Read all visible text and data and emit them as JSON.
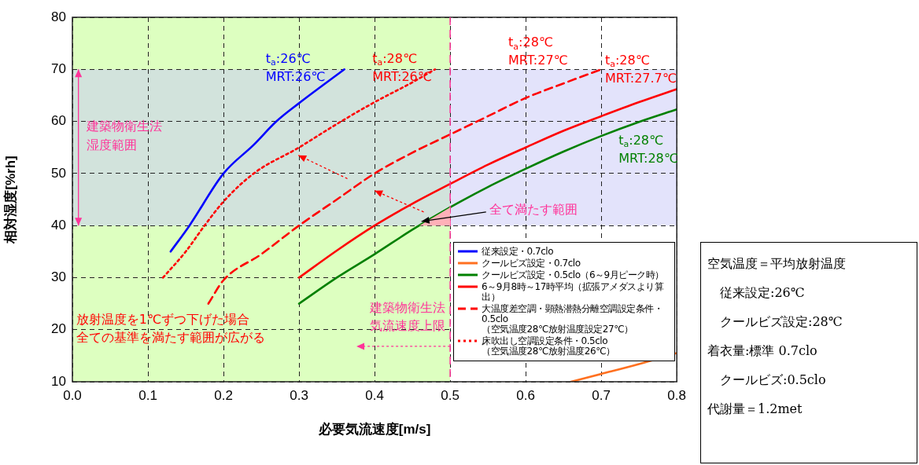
{
  "chart_data": {
    "type": "line",
    "xlabel": "必要気流速度[m/s]",
    "ylabel": "相対湿度[%rh]",
    "xlim": [
      0,
      0.8
    ],
    "xticks": [
      {
        "value": 0,
        "label": "0.0"
      },
      {
        "value": 0.1,
        "label": "0.1"
      },
      {
        "value": 0.2,
        "label": "0.2"
      },
      {
        "value": 0.3,
        "label": "0.3"
      },
      {
        "value": 0.4,
        "label": "0.4"
      },
      {
        "value": 0.5,
        "label": "0.5"
      },
      {
        "value": 0.6,
        "label": "0.6"
      },
      {
        "value": 0.7,
        "label": "0.7"
      },
      {
        "value": 0.8,
        "label": "0.8"
      }
    ],
    "ylim": [
      10,
      80
    ],
    "yticks": [
      10,
      20,
      30,
      40,
      50,
      60,
      70,
      80
    ],
    "grid": true,
    "legend": "bottom right",
    "series": [
      {
        "name": "従来設定・0.7clo",
        "color": "#0000ff",
        "line_style": "solid",
        "x": [
          0.13,
          0.155,
          0.2,
          0.24,
          0.27,
          0.3,
          0.36
        ],
        "values": [
          35,
          40,
          50,
          55.5,
          60,
          63.5,
          70
        ]
      },
      {
        "name": "クールビズ設定・0.7clo",
        "color": "#ff7020",
        "line_style": "solid",
        "x": [
          0.66,
          0.7,
          0.75,
          0.8
        ],
        "values": [
          10,
          11.5,
          13.4,
          15.5
        ]
      },
      {
        "name": "クールビズ設定・0.5clo（6～9月ピーク時）",
        "color": "#008000",
        "line_style": "solid",
        "x": [
          0.3,
          0.35,
          0.4,
          0.45,
          0.5,
          0.55,
          0.6,
          0.65,
          0.7,
          0.75,
          0.8
        ],
        "values": [
          25,
          30,
          34.5,
          39.2,
          43.5,
          47.4,
          50.9,
          54.2,
          57.2,
          59.9,
          62.3
        ]
      },
      {
        "name": "6～9月8時～17時平均（拡張アメダスより算出）",
        "color": "#ff0000",
        "line_style": "solid",
        "x": [
          0.3,
          0.35,
          0.4,
          0.45,
          0.5,
          0.55,
          0.6,
          0.65,
          0.7,
          0.75,
          0.8
        ],
        "values": [
          30,
          35.2,
          40,
          44.2,
          48,
          51.7,
          55,
          58.2,
          61,
          63.7,
          66.2
        ]
      },
      {
        "name": "大温度差空調・顕熱潜熱分離空調設定条件・0.5clo\n（空気温度28℃放射温度設定27℃）",
        "color": "#ff0000",
        "line_style": "dashed",
        "x": [
          0.18,
          0.2,
          0.25,
          0.3,
          0.35,
          0.4,
          0.45,
          0.5,
          0.55,
          0.6,
          0.65,
          0.7
        ],
        "values": [
          25,
          29.5,
          34.5,
          40,
          45,
          50,
          54,
          57.5,
          61,
          64.5,
          67.3,
          70
        ]
      },
      {
        "name": "床吹出し空調設定条件・0.5clo\n（空気温度28℃放射温度26℃）",
        "color": "#ff0000",
        "line_style": "dotted",
        "x": [
          0.12,
          0.15,
          0.175,
          0.2,
          0.24,
          0.3,
          0.35,
          0.4,
          0.45,
          0.48
        ],
        "values": [
          30,
          35,
          40,
          44.6,
          50,
          55,
          59.5,
          63.7,
          67.5,
          70
        ]
      }
    ],
    "bands": [
      {
        "axis": "x",
        "from": 0,
        "to": 0.5,
        "color": "#ddffc0"
      },
      {
        "axis": "y",
        "from": 40,
        "to": 70,
        "color": "#c8c8f8",
        "label": "建築物衛生法湿度範囲"
      }
    ],
    "ref_lines": [
      {
        "axis": "x",
        "value": 0.5,
        "color": "#ff3399",
        "line_style": "dashed",
        "label": "建築物衛生法気流速度上限"
      }
    ],
    "annotations": [
      "t$_{a}$:26℃\nMRT:26℃",
      "t$_{a}$:28℃\nMRT:26℃",
      "t$_{a}$:28℃\nMRT:27℃",
      "t$_{a}$:28℃\nMRT:27.7℃",
      "t$_{a}$:28℃\nMRT:28℃",
      {
        "text": "全て満たす範囲",
        "x": 0.46,
        "y": 40.8
      },
      "放射温度を1℃ずつ下げた場合全ての基準を満たす範囲が広がる",
      "空気温度＝平均放射温度",
      "従来設定:26℃",
      "クールビズ設定:28℃",
      "着衣量:標準 0.7clo",
      "クールビズ:0.5clo",
      "代謝量＝1.2met"
    ]
  }
}
